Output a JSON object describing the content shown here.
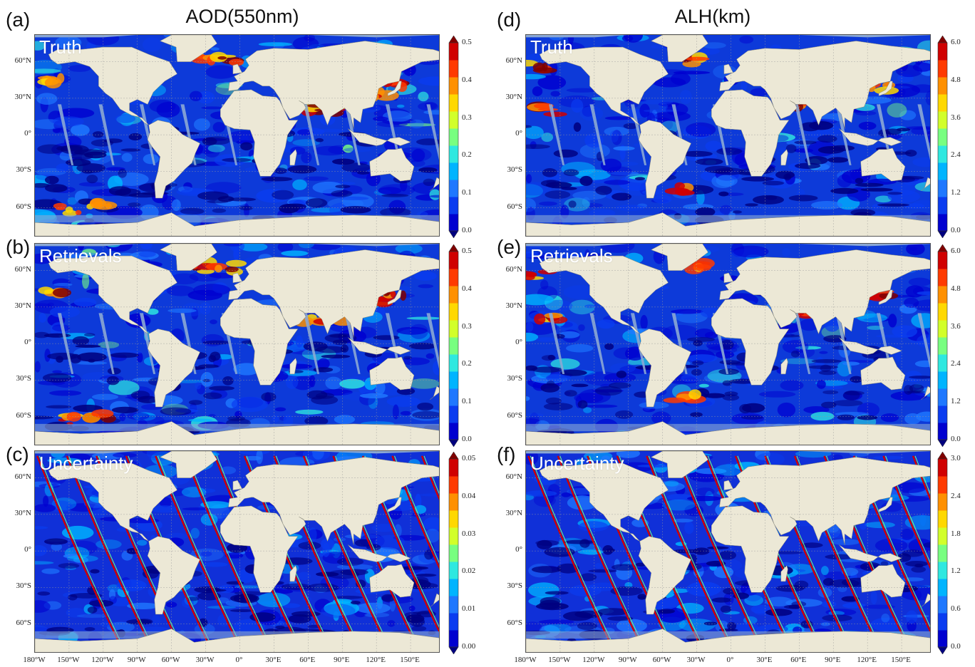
{
  "columns": [
    {
      "title": "AOD(550nm)"
    },
    {
      "title": "ALH(km)"
    }
  ],
  "panels": [
    {
      "id": "a",
      "label": "(a)",
      "title": "Truth",
      "col": 0,
      "row": 0,
      "variable": "AOD",
      "colorbar": {
        "ticks": [
          "0.5",
          "0.4",
          "0.3",
          "0.2",
          "0.1",
          "0.0"
        ],
        "min": 0,
        "max": 0.5
      }
    },
    {
      "id": "b",
      "label": "(b)",
      "title": "Retrievals",
      "col": 0,
      "row": 1,
      "variable": "AOD",
      "colorbar": {
        "ticks": [
          "0.5",
          "0.4",
          "0.3",
          "0.2",
          "0.1",
          "0.0"
        ],
        "min": 0,
        "max": 0.5
      }
    },
    {
      "id": "c",
      "label": "(c)",
      "title": "Uncertainty",
      "col": 0,
      "row": 2,
      "variable": "AOD uncertainty",
      "colorbar": {
        "ticks": [
          "0.05",
          "0.04",
          "0.03",
          "0.02",
          "0.01",
          "0.00"
        ],
        "min": 0,
        "max": 0.05
      }
    },
    {
      "id": "d",
      "label": "(d)",
      "title": "Truth",
      "col": 1,
      "row": 0,
      "variable": "ALH",
      "colorbar": {
        "ticks": [
          "6.0",
          "4.8",
          "3.6",
          "2.4",
          "1.2",
          "0.0"
        ],
        "min": 0,
        "max": 6.0
      }
    },
    {
      "id": "e",
      "label": "(e)",
      "title": "Retrievals",
      "col": 1,
      "row": 1,
      "variable": "ALH",
      "colorbar": {
        "ticks": [
          "6.0",
          "4.8",
          "3.6",
          "2.4",
          "1.2",
          "0.0"
        ],
        "min": 0,
        "max": 6.0
      }
    },
    {
      "id": "f",
      "label": "(f)",
      "title": "Uncertainty",
      "col": 1,
      "row": 2,
      "variable": "ALH uncertainty",
      "colorbar": {
        "ticks": [
          "3.0",
          "2.4",
          "1.8",
          "1.2",
          "0.6",
          "0.0"
        ],
        "min": 0,
        "max": 3.0
      }
    }
  ],
  "lat_labels": [
    "60°N",
    "30°N",
    "0°",
    "30°S",
    "60°S"
  ],
  "lon_labels": [
    "180°W",
    "150°W",
    "120°W",
    "90°W",
    "60°W",
    "30°W",
    "0°",
    "30°E",
    "60°E",
    "90°E",
    "120°E",
    "150°E"
  ],
  "colors": {
    "land": "#ece8d6",
    "ice": "#8ba8d4",
    "cmap": [
      "#00007f",
      "#0000d0",
      "#0a3cf0",
      "#1f78ff",
      "#00b4ff",
      "#2ee8e0",
      "#78ff80",
      "#d2ff2a",
      "#ffd800",
      "#ff9000",
      "#ff3a00",
      "#d00000",
      "#7f0000"
    ]
  }
}
